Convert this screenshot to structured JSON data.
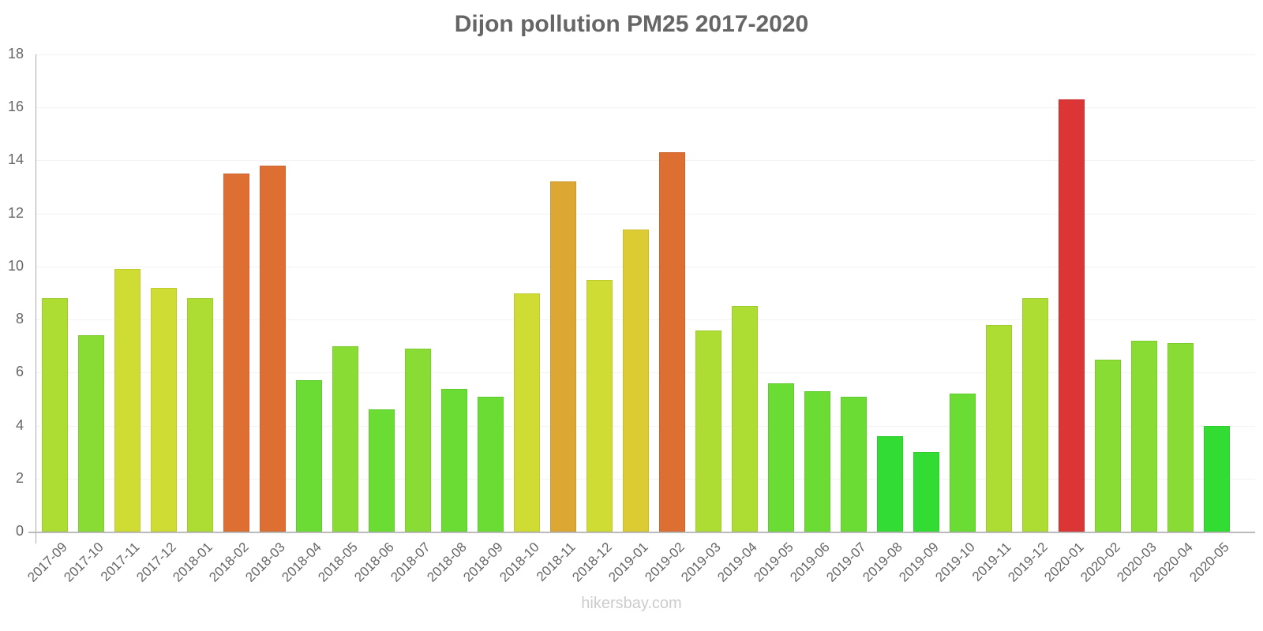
{
  "chart_data": {
    "type": "bar",
    "title": "Dijon pollution PM25 2017-2020",
    "xlabel": "",
    "ylabel": "",
    "ylim": [
      0,
      18
    ],
    "yticks": [
      0,
      2,
      4,
      6,
      8,
      10,
      12,
      14,
      16,
      18
    ],
    "grid": true,
    "legend": null,
    "categories": [
      "2017-09",
      "2017-10",
      "2017-11",
      "2017-12",
      "2018-01",
      "2018-02",
      "2018-03",
      "2018-04",
      "2018-05",
      "2018-06",
      "2018-07",
      "2018-08",
      "2018-09",
      "2018-10",
      "2018-11",
      "2018-12",
      "2019-01",
      "2019-02",
      "2019-03",
      "2019-04",
      "2019-05",
      "2019-06",
      "2019-07",
      "2019-08",
      "2019-09",
      "2019-10",
      "2019-11",
      "2019-12",
      "2020-01",
      "2020-02",
      "2020-03",
      "2020-04",
      "2020-05"
    ],
    "values": [
      8.8,
      7.4,
      9.9,
      9.2,
      8.8,
      13.5,
      13.8,
      5.7,
      7.0,
      4.6,
      6.9,
      5.4,
      5.1,
      9.0,
      13.2,
      9.5,
      11.4,
      14.3,
      7.6,
      8.5,
      5.6,
      5.3,
      5.1,
      3.6,
      3.0,
      5.2,
      7.8,
      8.8,
      16.3,
      6.5,
      7.2,
      7.1,
      4.0
    ],
    "colors": [
      "#addd33",
      "#89dc33",
      "#cfdc33",
      "#cfdc33",
      "#addd33",
      "#dd6f33",
      "#dd6f33",
      "#6adc33",
      "#89dc33",
      "#6adc33",
      "#89dc33",
      "#6adc33",
      "#6adc33",
      "#cfdc33",
      "#dca833",
      "#cfdc33",
      "#dccb33",
      "#dd6f33",
      "#addd33",
      "#addd33",
      "#6adc33",
      "#6adc33",
      "#6adc33",
      "#33dc33",
      "#33dc33",
      "#6adc33",
      "#addd33",
      "#addd33",
      "#dc3535",
      "#89dc33",
      "#89dc33",
      "#89dc33",
      "#33dc33"
    ]
  },
  "footer": {
    "watermark": "hikersbay.com"
  }
}
